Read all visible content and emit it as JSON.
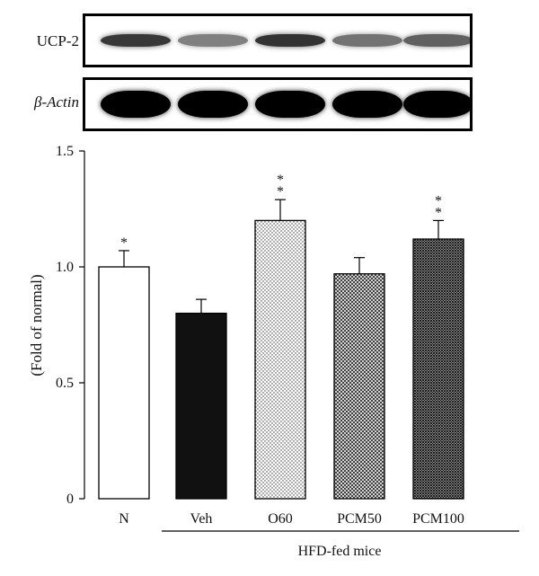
{
  "blots": {
    "ucp2_label": "UCP-2",
    "actin_label": "β-Actin",
    "ucp2_intensity": [
      0.78,
      0.5,
      0.8,
      0.55,
      0.62
    ],
    "actin_intensity": [
      1,
      1,
      1,
      1,
      1
    ]
  },
  "chart_data": {
    "type": "bar",
    "categories": [
      "N",
      "Veh",
      "O60",
      "PCM50",
      "PCM100"
    ],
    "values": [
      1.0,
      0.8,
      1.2,
      0.97,
      1.12
    ],
    "errors": [
      0.07,
      0.06,
      0.09,
      0.07,
      0.08
    ],
    "significance": [
      "*",
      "",
      "**",
      "",
      "**"
    ],
    "fills": [
      "white",
      "black",
      "fine-dots",
      "crosshatch",
      "dense-crosshatch"
    ],
    "ylabel": "(Fold of normal)",
    "ylim": [
      0,
      1.5
    ],
    "yticks": [
      "0",
      "0.5",
      "1.0",
      "1.5"
    ],
    "group_label": "HFD-fed mice"
  }
}
